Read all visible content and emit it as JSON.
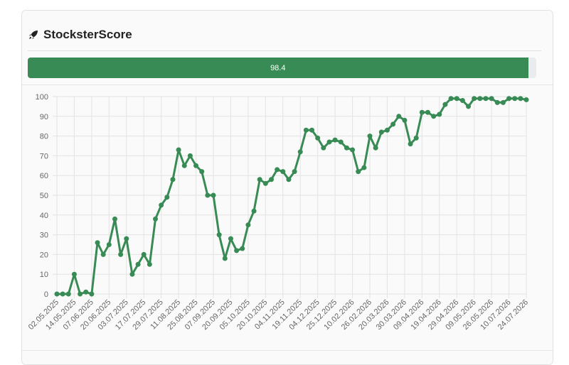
{
  "header": {
    "title": "StocksterScore"
  },
  "progress": {
    "value": 98.4,
    "range": [
      0,
      100
    ]
  },
  "chart_data": {
    "type": "line",
    "color": "#388b54",
    "grid": true,
    "ylim": [
      0,
      100
    ],
    "yticks": [
      0,
      10,
      20,
      30,
      40,
      50,
      60,
      70,
      80,
      90,
      100
    ],
    "categories": [
      "02.05.2025",
      null,
      null,
      "14.05.2025",
      null,
      null,
      "07.06.2025",
      null,
      null,
      "20.06.2025",
      null,
      null,
      "03.07.2025",
      null,
      null,
      "17.07.2025",
      null,
      null,
      "29.07.2025",
      null,
      null,
      "11.08.2025",
      null,
      null,
      "25.08.2025",
      null,
      null,
      "07.09.2025",
      null,
      null,
      "20.09.2025",
      null,
      null,
      "05.10.2025",
      null,
      null,
      "20.10.2025",
      null,
      null,
      "04.11.2025",
      null,
      null,
      "19.11.2025",
      null,
      null,
      "04.12.2025",
      null,
      null,
      "25.12.2025",
      null,
      null,
      "10.02.2026",
      null,
      null,
      "26.02.2026",
      null,
      null,
      "20.03.2026",
      null,
      null,
      "30.03.2026",
      null,
      null,
      "09.04.2026",
      null,
      null,
      "19.04.2026",
      null,
      null,
      "29.04.2026",
      null,
      null,
      "09.05.2026",
      null,
      null,
      "26.05.2026",
      null,
      null,
      "10.07.2026",
      null,
      null,
      "24.07.2026"
    ],
    "values": [
      0,
      0,
      0,
      10,
      0,
      1,
      0,
      26,
      20,
      25,
      38,
      20,
      28,
      10,
      15,
      20,
      15,
      38,
      45,
      49,
      58,
      73,
      65,
      70,
      65,
      62,
      50,
      50,
      30,
      18,
      28,
      22,
      23,
      35,
      42,
      58,
      56,
      58,
      63,
      62,
      58,
      62,
      72,
      83,
      83,
      79,
      74,
      77,
      78,
      77,
      74,
      73,
      62,
      64,
      80,
      74,
      82,
      83,
      86,
      90,
      88,
      76,
      79,
      92,
      92,
      90,
      91,
      96,
      99,
      99,
      98,
      95,
      99,
      99,
      99,
      99,
      97,
      97,
      99,
      99,
      99,
      98.4
    ]
  }
}
